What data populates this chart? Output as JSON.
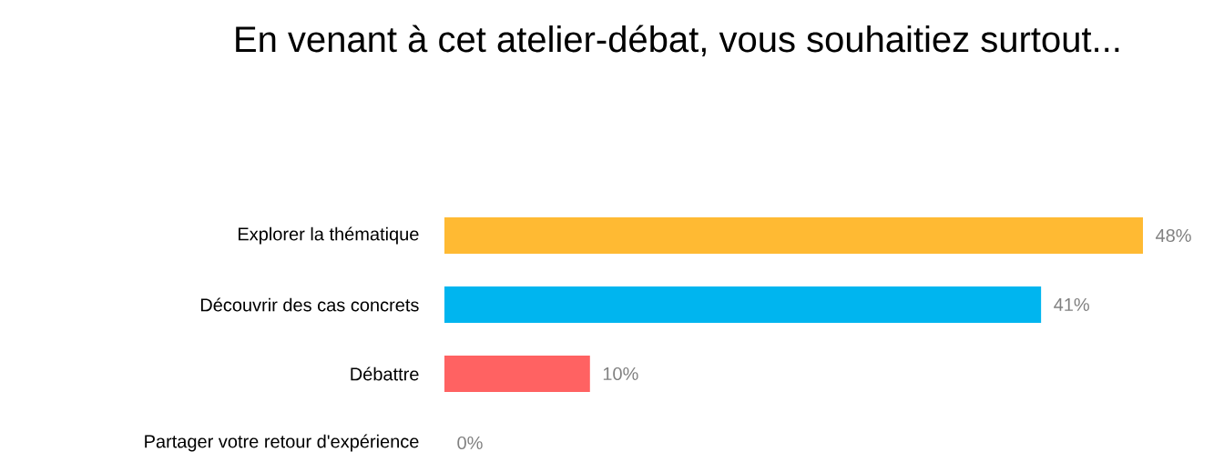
{
  "chart_data": {
    "type": "bar",
    "orientation": "horizontal",
    "title": "En venant à cet atelier-débat, vous souhaitiez surtout...",
    "categories": [
      "Explorer la thématique",
      "Découvrir des cas concrets",
      "Débattre",
      "Partager votre retour d'expérience"
    ],
    "values": [
      48,
      41,
      10,
      0
    ],
    "colors": [
      "#ffba33",
      "#00b5ef",
      "#ff6262",
      "#4caf2a"
    ],
    "value_labels": [
      "48%",
      "41%",
      "10%",
      "0%"
    ]
  }
}
